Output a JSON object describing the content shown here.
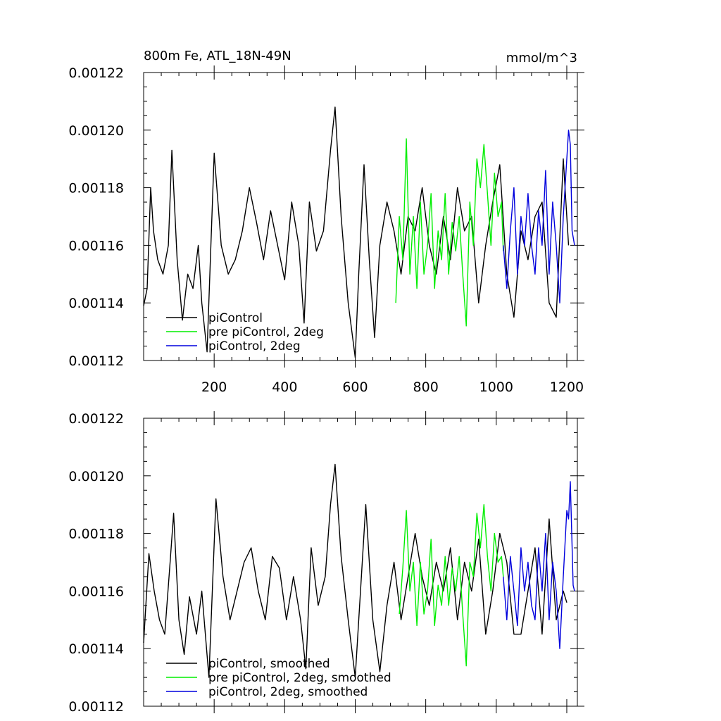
{
  "chart_data": [
    {
      "type": "line",
      "title_left": "800m Fe, ATL_18N-49N",
      "title_right": "mmol/m^3",
      "xlim": [
        0,
        1230
      ],
      "ylim": [
        0.00112,
        0.00122
      ],
      "xticks": [
        200,
        400,
        600,
        800,
        1000,
        1200
      ],
      "xtick_labels": [
        "200",
        "400",
        "600",
        "800",
        "1000",
        "1200"
      ],
      "show_xtick_labels": true,
      "yticks": [
        0.00112,
        0.00114,
        0.00116,
        0.00118,
        0.0012,
        0.00122
      ],
      "ytick_labels": [
        "0.00112",
        "0.00114",
        "0.00116",
        "0.00118",
        "0.00120",
        "0.00122"
      ],
      "legend_position": "bottom-left",
      "series": [
        {
          "name": "piControl",
          "color": "#000000",
          "x": [
            0,
            10,
            20,
            28,
            40,
            55,
            70,
            80,
            95,
            110,
            125,
            140,
            155,
            165,
            180,
            200,
            220,
            240,
            260,
            280,
            300,
            320,
            340,
            360,
            380,
            400,
            420,
            440,
            455,
            470,
            490,
            510,
            530,
            543,
            560,
            580,
            600,
            610,
            625,
            640,
            655,
            670,
            690,
            710,
            730,
            750,
            770,
            790,
            810,
            830,
            850,
            870,
            890,
            910,
            930,
            950,
            970,
            990,
            1010,
            1030,
            1050,
            1070,
            1090,
            1110,
            1130,
            1150,
            1170,
            1190,
            1205
          ],
          "y": [
            0.001139,
            0.001145,
            0.00118,
            0.001165,
            0.001155,
            0.00115,
            0.00116,
            0.001193,
            0.001155,
            0.001134,
            0.00115,
            0.001145,
            0.00116,
            0.00114,
            0.001123,
            0.001192,
            0.00116,
            0.00115,
            0.001155,
            0.001165,
            0.00118,
            0.001168,
            0.001155,
            0.001172,
            0.00116,
            0.001148,
            0.001175,
            0.00116,
            0.001133,
            0.001175,
            0.001158,
            0.001165,
            0.001193,
            0.001208,
            0.00117,
            0.00114,
            0.001121,
            0.00115,
            0.001188,
            0.001155,
            0.001128,
            0.00116,
            0.001175,
            0.001165,
            0.00115,
            0.00117,
            0.001165,
            0.00118,
            0.00116,
            0.00115,
            0.00117,
            0.001155,
            0.00118,
            0.001165,
            0.00117,
            0.00114,
            0.00116,
            0.001175,
            0.001188,
            0.00115,
            0.001135,
            0.001165,
            0.001155,
            0.00117,
            0.001175,
            0.00114,
            0.001135,
            0.00119,
            0.00116
          ]
        },
        {
          "name": "pre piControl, 2deg",
          "color": "#00ee00",
          "x": [
            715,
            725,
            735,
            745,
            755,
            765,
            775,
            785,
            795,
            805,
            815,
            825,
            835,
            845,
            855,
            865,
            875,
            885,
            895,
            905,
            915,
            925,
            935,
            945,
            955,
            965,
            975,
            985,
            995,
            1005,
            1015,
            1020
          ],
          "y": [
            0.00114,
            0.00117,
            0.001155,
            0.001197,
            0.00115,
            0.00117,
            0.001145,
            0.001175,
            0.00115,
            0.00116,
            0.001178,
            0.001145,
            0.001165,
            0.001155,
            0.001178,
            0.00115,
            0.001168,
            0.001158,
            0.00117,
            0.00115,
            0.001132,
            0.001175,
            0.00116,
            0.00119,
            0.00118,
            0.001195,
            0.001178,
            0.00116,
            0.001185,
            0.00117,
            0.001175,
            0.001158
          ]
        },
        {
          "name": "piControl, 2deg",
          "color": "#0000dd",
          "x": [
            1020,
            1030,
            1040,
            1050,
            1060,
            1070,
            1080,
            1090,
            1100,
            1110,
            1120,
            1130,
            1140,
            1150,
            1160,
            1170,
            1180,
            1190,
            1200,
            1205,
            1210,
            1215,
            1222
          ],
          "y": [
            0.00116,
            0.001145,
            0.001165,
            0.00118,
            0.00115,
            0.00117,
            0.00116,
            0.001178,
            0.00116,
            0.00115,
            0.001172,
            0.00116,
            0.001186,
            0.00115,
            0.001175,
            0.00116,
            0.00114,
            0.00117,
            0.00119,
            0.0012,
            0.001195,
            0.001165,
            0.00116
          ]
        }
      ]
    },
    {
      "type": "line",
      "xlim": [
        0,
        1230
      ],
      "ylim": [
        0.00112,
        0.00122
      ],
      "xticks": [
        200,
        400,
        600,
        800,
        1000,
        1200
      ],
      "show_xtick_labels": false,
      "yticks": [
        0.00112,
        0.00114,
        0.00116,
        0.00118,
        0.0012,
        0.00122
      ],
      "ytick_labels": [
        "0.00112",
        "0.00114",
        "0.00116",
        "0.00118",
        "0.00120",
        "0.00122"
      ],
      "legend_position": "bottom-left",
      "series": [
        {
          "name": "piControl, smoothed",
          "color": "#000000",
          "x": [
            0,
            15,
            30,
            45,
            60,
            75,
            85,
            100,
            115,
            130,
            150,
            165,
            185,
            205,
            225,
            245,
            265,
            285,
            305,
            325,
            345,
            365,
            385,
            405,
            425,
            445,
            460,
            475,
            495,
            515,
            530,
            543,
            560,
            580,
            600,
            615,
            630,
            650,
            670,
            690,
            710,
            730,
            750,
            770,
            790,
            810,
            830,
            850,
            870,
            890,
            910,
            930,
            950,
            970,
            990,
            1010,
            1030,
            1050,
            1070,
            1090,
            1110,
            1130,
            1150,
            1170,
            1190,
            1200
          ],
          "y": [
            0.001142,
            0.001173,
            0.00116,
            0.00115,
            0.001145,
            0.00117,
            0.001187,
            0.00115,
            0.001138,
            0.001158,
            0.001145,
            0.00116,
            0.00113,
            0.001192,
            0.001165,
            0.00115,
            0.00116,
            0.00117,
            0.001175,
            0.00116,
            0.00115,
            0.001172,
            0.001168,
            0.00115,
            0.001165,
            0.00115,
            0.001133,
            0.001175,
            0.001155,
            0.001165,
            0.00119,
            0.001204,
            0.001172,
            0.00115,
            0.00113,
            0.00116,
            0.00119,
            0.00115,
            0.001132,
            0.001155,
            0.00117,
            0.00115,
            0.001165,
            0.00118,
            0.001165,
            0.001155,
            0.00117,
            0.00116,
            0.001175,
            0.00115,
            0.00117,
            0.00116,
            0.001178,
            0.001145,
            0.00116,
            0.00118,
            0.00117,
            0.001145,
            0.001145,
            0.00116,
            0.001175,
            0.001145,
            0.001185,
            0.00115,
            0.00116,
            0.001156
          ]
        },
        {
          "name": "pre piControl, 2deg, smoothed",
          "color": "#00ee00",
          "x": [
            725,
            735,
            745,
            755,
            765,
            775,
            785,
            795,
            805,
            815,
            825,
            835,
            845,
            855,
            865,
            875,
            885,
            895,
            905,
            915,
            925,
            935,
            945,
            955,
            965,
            975,
            985,
            995,
            1005,
            1015,
            1020
          ],
          "y": [
            0.001152,
            0.001168,
            0.001188,
            0.00116,
            0.00117,
            0.001148,
            0.00117,
            0.001152,
            0.00116,
            0.001178,
            0.001148,
            0.001162,
            0.001155,
            0.001172,
            0.001155,
            0.001168,
            0.00116,
            0.001172,
            0.001152,
            0.001134,
            0.00117,
            0.001165,
            0.001187,
            0.001175,
            0.00119,
            0.001172,
            0.00116,
            0.00118,
            0.00117,
            0.001172,
            0.001165
          ]
        },
        {
          "name": "piControl, 2deg, smoothed",
          "color": "#0000dd",
          "x": [
            1020,
            1030,
            1040,
            1050,
            1060,
            1070,
            1080,
            1090,
            1100,
            1110,
            1120,
            1130,
            1140,
            1150,
            1160,
            1170,
            1180,
            1190,
            1200,
            1205,
            1210,
            1218,
            1222
          ],
          "y": [
            0.001165,
            0.00115,
            0.001172,
            0.00116,
            0.001148,
            0.001175,
            0.00116,
            0.00117,
            0.001155,
            0.00115,
            0.001175,
            0.00116,
            0.00118,
            0.00115,
            0.00117,
            0.00116,
            0.00114,
            0.001165,
            0.001188,
            0.001185,
            0.001198,
            0.001162,
            0.00116
          ]
        }
      ]
    }
  ]
}
